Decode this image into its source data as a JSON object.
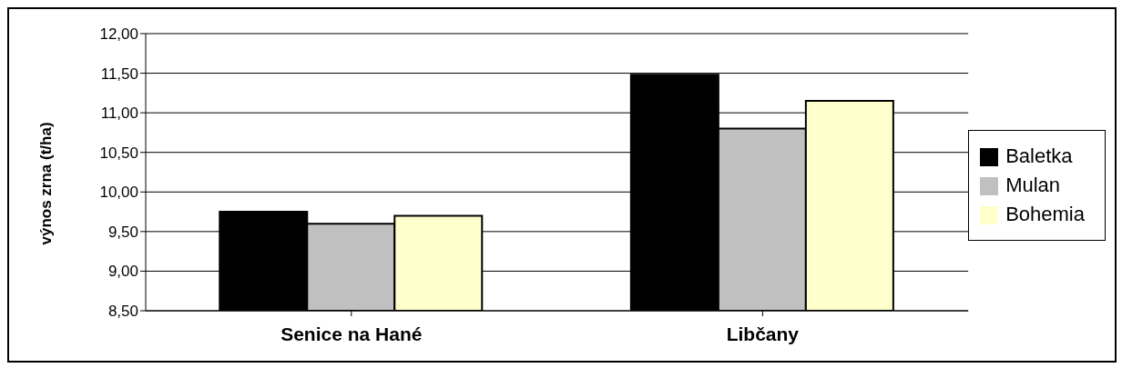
{
  "chart_data": {
    "type": "bar",
    "categories": [
      "Senice na Hané",
      "Libčany"
    ],
    "series": [
      {
        "name": "Baletka",
        "color": "#000000",
        "values": [
          9.75,
          11.48
        ]
      },
      {
        "name": "Mulan",
        "color": "#c0c0c0",
        "values": [
          9.6,
          10.8
        ]
      },
      {
        "name": "Bohemia",
        "color": "#ffffcc",
        "values": [
          9.7,
          11.15
        ]
      }
    ],
    "ylabel": "výnos zrna (t/ha)",
    "ylim": [
      8.5,
      12
    ],
    "yticks": [
      {
        "value": 8.5,
        "label": "8,50"
      },
      {
        "value": 9,
        "label": "9,00"
      },
      {
        "value": 9.5,
        "label": "9,50"
      },
      {
        "value": 10,
        "label": "10,00"
      },
      {
        "value": 10.5,
        "label": "10,50"
      },
      {
        "value": 11,
        "label": "11,00"
      },
      {
        "value": 11.5,
        "label": "11,50"
      },
      {
        "value": 12,
        "label": "12,00"
      }
    ],
    "grid": "y",
    "legend": "right"
  }
}
